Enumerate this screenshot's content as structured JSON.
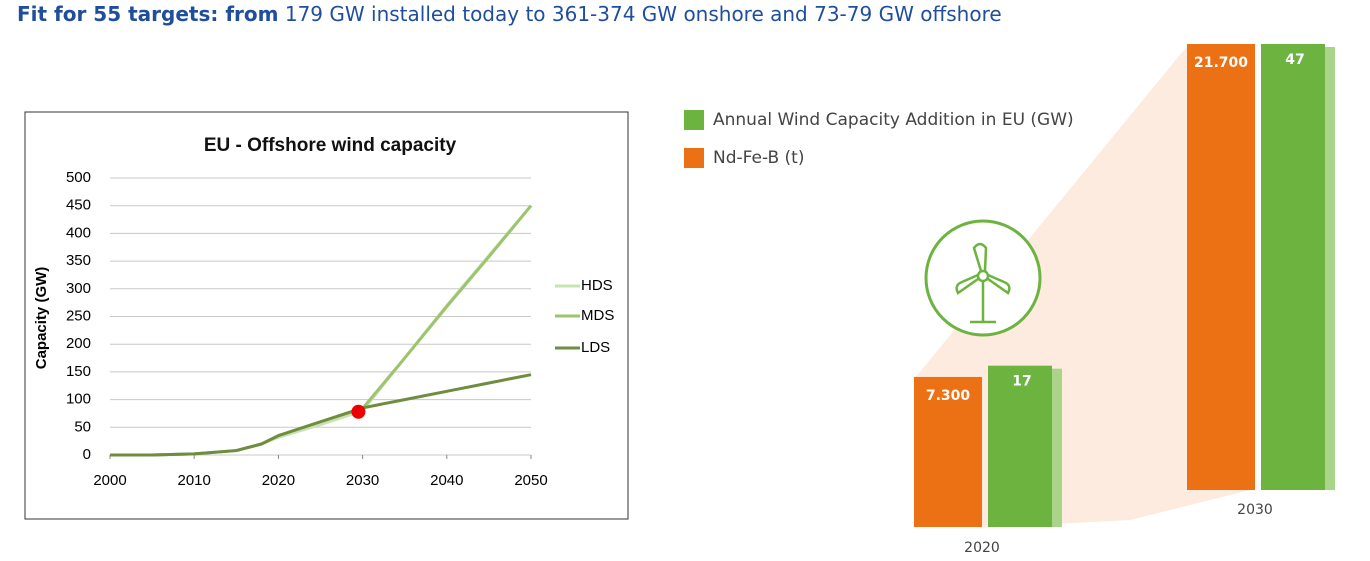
{
  "header": {
    "title_bold": "Fit for 55 targets: from",
    "title_rest": "179 GW installed today to 361-374 GW onshore and 73-79 GW offshore"
  },
  "chart_data": [
    {
      "type": "line",
      "title": "EU - Offshore wind capacity",
      "y_label": "Capacity (GW)",
      "x": [
        2000,
        2005,
        2010,
        2015,
        2018,
        2020,
        2025,
        2030,
        2035,
        2040,
        2045,
        2050
      ],
      "xlim": [
        2000,
        2050
      ],
      "xticks": [
        2000,
        2010,
        2020,
        2030,
        2040,
        2050
      ],
      "ylim": [
        0,
        500
      ],
      "yticks": [
        0,
        50,
        100,
        150,
        200,
        250,
        300,
        350,
        400,
        450,
        500
      ],
      "grid": true,
      "legend": "right",
      "series": [
        {
          "name": "HDS",
          "color": "#c9e2b3",
          "values": [
            0,
            0,
            2,
            8,
            20,
            32,
            55,
            80,
            175,
            270,
            360,
            450
          ]
        },
        {
          "name": "MDS",
          "color": "#9cc46c",
          "values": [
            0,
            0,
            2,
            8,
            20,
            35,
            60,
            84,
            175,
            268,
            358,
            450
          ]
        },
        {
          "name": "LDS",
          "color": "#6f8c3f",
          "values": [
            0,
            0,
            2,
            8,
            20,
            35,
            60,
            85,
            100,
            115,
            130,
            145
          ]
        }
      ],
      "highlight": {
        "x": 2029.5,
        "y": 78,
        "color": "#ee0000"
      }
    },
    {
      "type": "bar",
      "categories": [
        "2020",
        "2030"
      ],
      "legend": "top-left",
      "series": [
        {
          "name": "Annual Wind Capacity Addition in EU (GW)",
          "color": "#6cb33f",
          "values": [
            17,
            47
          ]
        },
        {
          "name": "Nd-Fe-B (t)",
          "color": "#ec7014",
          "values": [
            7300,
            21700
          ],
          "value_labels": [
            "7.300",
            "21.700"
          ]
        }
      ]
    }
  ]
}
